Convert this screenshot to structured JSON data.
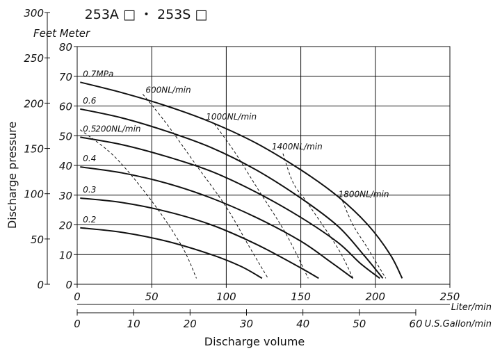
{
  "chart_data": {
    "type": "line",
    "title": "253A □ ・ 253S □",
    "y_header": "Feet Meter",
    "ylabel": "Discharge pressure",
    "xlabel": "Discharge volume",
    "x_unit": "Liter/min",
    "x2_unit": "U.S.Gallon/min",
    "xlim": [
      0,
      250
    ],
    "ylim": [
      0,
      80
    ],
    "grid": true,
    "x_ticks": [
      "0",
      "50",
      "100",
      "150",
      "200",
      "250"
    ],
    "y_ticks": [
      "0",
      "10",
      "20",
      "30",
      "40",
      "50",
      "60",
      "70",
      "80"
    ],
    "feet_ticks": [
      "0",
      "50",
      "100",
      "150",
      "200",
      "250",
      "300"
    ],
    "gallon_ticks": [
      "0",
      "10",
      "20",
      "30",
      "40",
      "50",
      "60"
    ],
    "series": [
      {
        "name": "0.7MPa",
        "x": [
          2,
          30,
          60,
          90,
          120,
          150,
          175,
          195,
          210,
          218
        ],
        "y": [
          68,
          64.5,
          60,
          54.5,
          47.5,
          38.5,
          29.5,
          20,
          10,
          2
        ]
      },
      {
        "name": "0.6",
        "x": [
          2,
          30,
          60,
          90,
          120,
          150,
          175,
          192,
          205
        ],
        "y": [
          59,
          56,
          51.5,
          46,
          38.5,
          29,
          19.5,
          10,
          2
        ]
      },
      {
        "name": "0.5",
        "x": [
          2,
          30,
          60,
          90,
          120,
          150,
          175,
          190,
          203
        ],
        "y": [
          49.5,
          47,
          43,
          38,
          31,
          22.5,
          14,
          7,
          2
        ]
      },
      {
        "name": "0.4",
        "x": [
          2,
          30,
          60,
          90,
          120,
          150,
          170,
          185
        ],
        "y": [
          39.5,
          37.5,
          34,
          29,
          22.5,
          14.5,
          7.5,
          2
        ]
      },
      {
        "name": "0.3",
        "x": [
          2,
          30,
          60,
          90,
          120,
          150,
          162
        ],
        "y": [
          29,
          27.5,
          24.5,
          20,
          13.5,
          5.5,
          2
        ]
      },
      {
        "name": "0.2",
        "x": [
          2,
          30,
          60,
          90,
          110,
          124
        ],
        "y": [
          19,
          17.5,
          14.5,
          10,
          6,
          2
        ]
      }
    ],
    "air_lines": [
      {
        "name": "200NL/min",
        "x": [
          2,
          25,
          50,
          70,
          80
        ],
        "y": [
          52,
          43,
          28,
          13,
          2
        ]
      },
      {
        "name": "600NL/min",
        "x": [
          44,
          60,
          80,
          100,
          115,
          128
        ],
        "y": [
          64,
          54,
          40,
          26,
          13,
          2
        ]
      },
      {
        "name": "1000NL/min",
        "x": [
          92,
          105,
          120,
          140,
          155
        ],
        "y": [
          54,
          45,
          33,
          17,
          2
        ]
      },
      {
        "name": "1400NL/min",
        "x": [
          138,
          145,
          155,
          175,
          185
        ],
        "y": [
          44,
          34,
          27,
          12,
          2
        ]
      },
      {
        "name": "1800NL/min",
        "x": [
          178,
          185,
          195,
          207
        ],
        "y": [
          28,
          20,
          12,
          2
        ]
      }
    ]
  }
}
